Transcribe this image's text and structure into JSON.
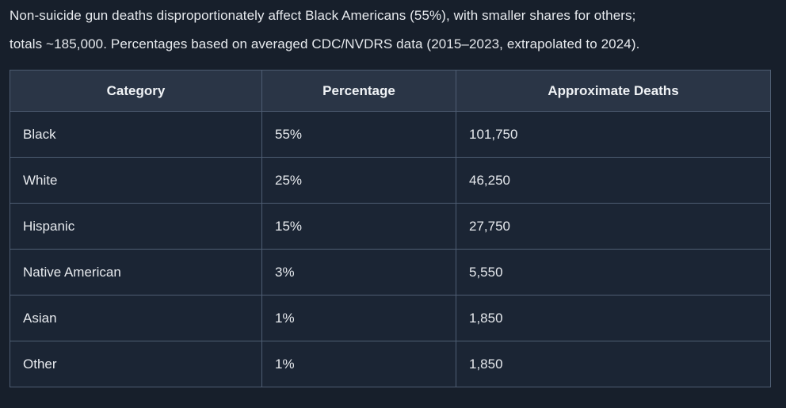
{
  "caption": {
    "lines": [
      "Non-suicide gun deaths disproportionately affect Black Americans (55%), with smaller shares for others;",
      "totals ~185,000. Percentages based on averaged CDC/NVDRS data (2015–2023, extrapolated to 2024)."
    ]
  },
  "table": {
    "headers": [
      "Category",
      "Percentage",
      "Approximate Deaths"
    ],
    "rows": [
      {
        "category": "Black",
        "percentage": "55%",
        "deaths": "101,750"
      },
      {
        "category": "White",
        "percentage": "25%",
        "deaths": "46,250"
      },
      {
        "category": "Hispanic",
        "percentage": "15%",
        "deaths": "27,750"
      },
      {
        "category": "Native American",
        "percentage": "3%",
        "deaths": "5,550"
      },
      {
        "category": "Asian",
        "percentage": "1%",
        "deaths": "1,850"
      },
      {
        "category": "Other",
        "percentage": "1%",
        "deaths": "1,850"
      }
    ]
  },
  "chart_data": {
    "type": "table",
    "title": "Non-suicide gun deaths disproportionately affect Black Americans (55%), with smaller shares for others; totals ~185,000. Percentages based on averaged CDC/NVDRS data (2015–2023, extrapolated to 2024).",
    "columns": [
      "Category",
      "Percentage",
      "Approximate Deaths"
    ],
    "rows": [
      [
        "Black",
        55,
        101750
      ],
      [
        "White",
        25,
        46250
      ],
      [
        "Hispanic",
        15,
        27750
      ],
      [
        "Native American",
        3,
        5550
      ],
      [
        "Asian",
        1,
        1850
      ],
      [
        "Other",
        1,
        1850
      ]
    ]
  },
  "colors": {
    "page_bg": "#171f2b",
    "header_bg": "#2a3546",
    "cell_bg": "#1b2534",
    "border": "#4e5d72",
    "text": "#e7eaee"
  }
}
